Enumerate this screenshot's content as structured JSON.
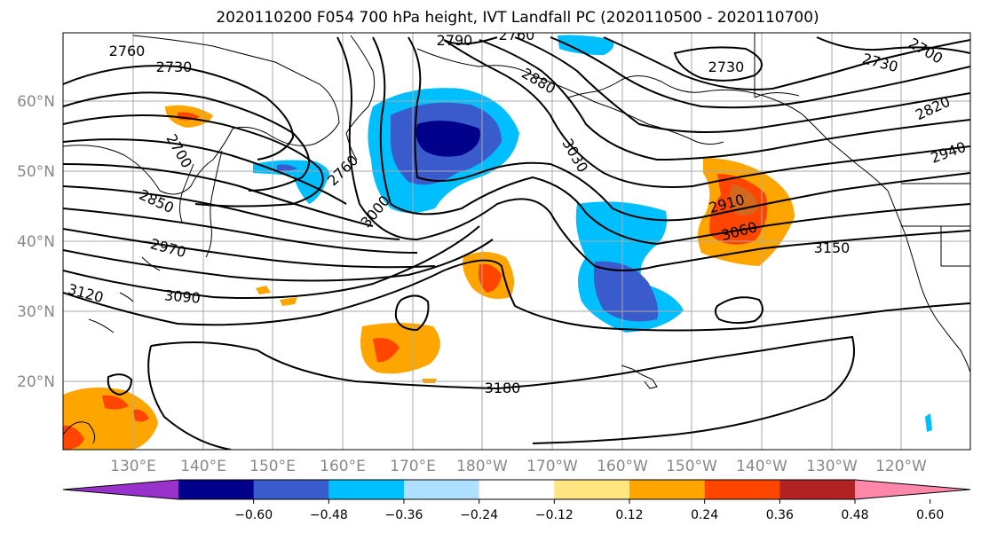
{
  "title": "2020110200 F054 700 hPa height, IVT Landfall PC (2020110500 - 2020110700)",
  "lat_labels": [
    "60°N",
    "50°N",
    "40°N",
    "30°N",
    "20°N"
  ],
  "lon_labels": [
    "130°E",
    "140°E",
    "150°E",
    "160°E",
    "170°E",
    "180°W",
    "170°W",
    "160°W",
    "150°W",
    "140°W",
    "130°W",
    "120°W"
  ],
  "contour_labels": [
    "2760",
    "2730",
    "2790",
    "2760",
    "2880",
    "2730",
    "2700",
    "2730",
    "2820",
    "2940",
    "2700",
    "2760",
    "2850",
    "3030",
    "3000",
    "2910",
    "3060",
    "2970",
    "3150",
    "3120",
    "3090",
    "3180"
  ],
  "colorbar": {
    "tick_labels": [
      "−0.60",
      "−0.48",
      "−0.36",
      "−0.24",
      "−0.12",
      "0.12",
      "0.24",
      "0.36",
      "0.48",
      "0.60"
    ],
    "colors": [
      "#9932cc",
      "#00008b",
      "#3a5bcc",
      "#00bfff",
      "#b0e0ff",
      "#ffffff",
      "#ffe680",
      "#ffa500",
      "#ff4500",
      "#b22222",
      "#ff88aa"
    ]
  }
}
